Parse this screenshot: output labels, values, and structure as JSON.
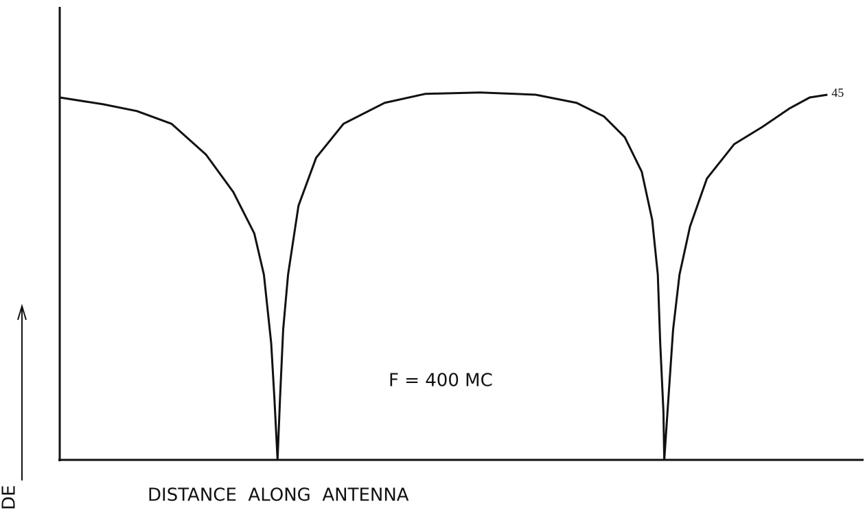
{
  "chart_data": {
    "type": "line",
    "x_label": "DISTANCE  ALONG  ANTENNA",
    "y_label": "DE",
    "annotations": [
      "F = 400 MC",
      "45"
    ],
    "x": [
      0,
      5.4,
      9.6,
      13.9,
      18.2,
      21.6,
      24.2,
      25.4,
      26.3,
      26.7,
      27.1,
      27.4,
      27.8,
      28.4,
      29.7,
      31.9,
      35.3,
      40.4,
      45.5,
      52.3,
      59.2,
      64.3,
      67.7,
      70.3,
      72.4,
      73.7,
      74.4,
      74.7,
      75.1,
      75.2,
      75.6,
      76.3,
      77.1,
      78.4,
      80.5,
      83.9,
      87.4,
      90.8,
      93.3,
      95.5
    ],
    "series": [
      {
        "color": "#111111",
        "values": [
          80,
          78.5,
          77,
          74.2,
          67.4,
          59.1,
          50,
          40.9,
          25.8,
          13.6,
          0,
          13.6,
          28.8,
          40.9,
          56.1,
          66.7,
          74.2,
          78.8,
          80.8,
          81.1,
          80.6,
          78.8,
          75.8,
          71.2,
          63.6,
          53,
          40.9,
          25.8,
          10.6,
          0,
          10.6,
          28.8,
          40.9,
          51.5,
          62.1,
          69.7,
          73.5,
          77.6,
          80,
          80.6
        ]
      }
    ],
    "xlim": [
      0,
      100
    ],
    "ylim": [
      0,
      100
    ],
    "grid": false
  }
}
